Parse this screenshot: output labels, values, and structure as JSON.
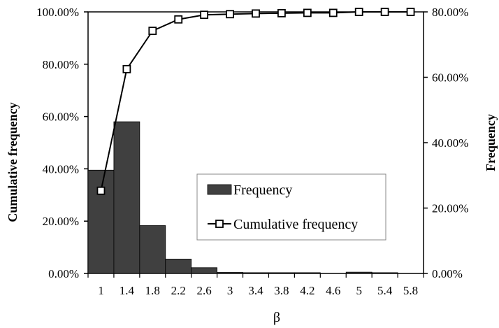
{
  "chart_data": {
    "type": "bar",
    "xlabel": "β",
    "ylabel_left": "Cumulative frequency",
    "ylabel_right": "Frequency",
    "categories": [
      "1",
      "1.4",
      "1.8",
      "2.2",
      "2.6",
      "3",
      "3.4",
      "3.8",
      "4.2",
      "4.6",
      "5",
      "5.4",
      "5.8"
    ],
    "y_left": {
      "min": 0,
      "max": 100,
      "ticks": [
        "0.00%",
        "20.00%",
        "40.00%",
        "60.00%",
        "80.00%",
        "100.00%"
      ]
    },
    "y_right": {
      "min": 0,
      "max": 80,
      "ticks": [
        "0.00%",
        "20.00%",
        "40.00%",
        "60.00%",
        "80.00%"
      ]
    },
    "series": [
      {
        "name": "Frequency",
        "kind": "bar",
        "axis": "left",
        "color": "#404040",
        "values": [
          39.5,
          58.0,
          18.3,
          5.5,
          2.2,
          0.4,
          0.3,
          0.3,
          0.3,
          0.0,
          0.5,
          0.3,
          0.0
        ]
      },
      {
        "name": "Cumulative frequency",
        "kind": "line",
        "axis": "right",
        "marker": "open-square",
        "color": "#000000",
        "values": [
          25.3,
          62.5,
          74.2,
          77.7,
          79.1,
          79.3,
          79.5,
          79.6,
          79.7,
          79.7,
          80.0,
          80.0,
          80.0
        ]
      }
    ],
    "legend": {
      "placement": "center-right"
    },
    "grid": false
  }
}
